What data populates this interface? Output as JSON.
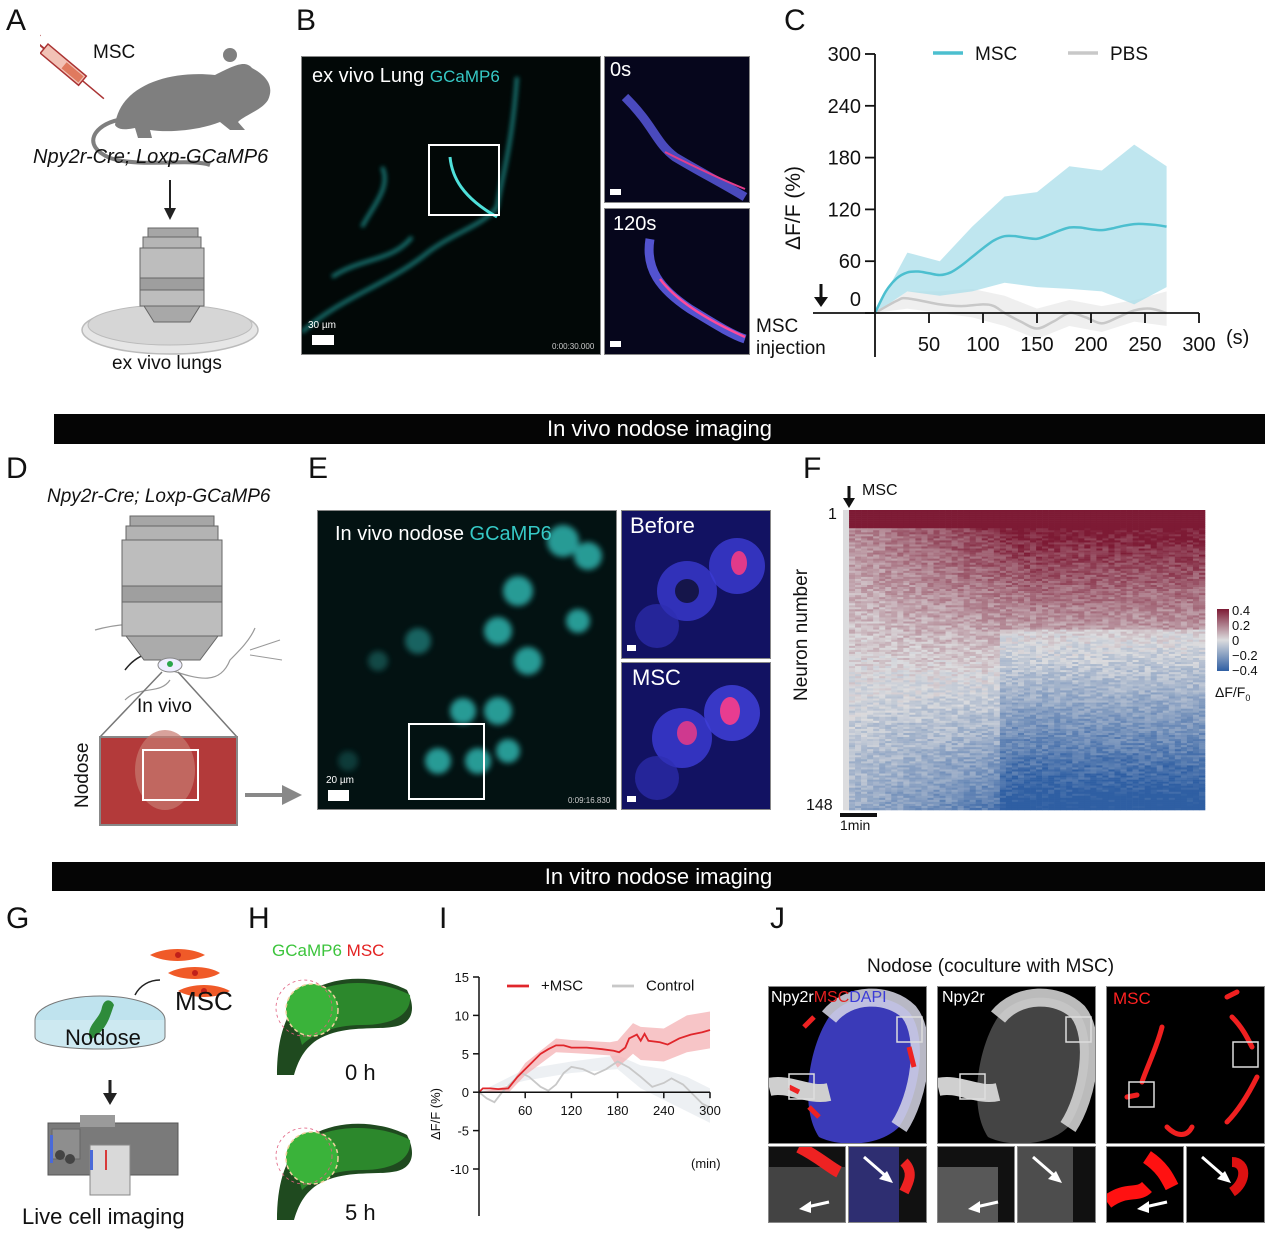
{
  "panels": {
    "A": {
      "letter": "A",
      "injection_label": "MSC",
      "genotype": "Npy2r-Cre; Loxp-GCaMP6",
      "caption": "ex vivo lungs"
    },
    "B": {
      "letter": "B",
      "main_label": "ex vivo Lung",
      "main_label_channel": "GCaMP6",
      "scale": "30 µm",
      "timestamp": "0:00:30.000",
      "inset_top_label": "0s",
      "inset_bottom_label": "120s"
    },
    "C": {
      "letter": "C"
    },
    "D": {
      "letter": "D",
      "genotype": "Npy2r-Cre; Loxp-GCaMP6",
      "in_vivo_label": "In vivo",
      "nodose_label": "Nodose"
    },
    "E": {
      "letter": "E",
      "main_label": "In vivo nodose",
      "main_label_channel": "GCaMP6",
      "scale": "20 µm",
      "timestamp": "0:09:16.830",
      "inset_top_label": "Before",
      "inset_bottom_label": "MSC"
    },
    "F": {
      "letter": "F",
      "marker": "MSC",
      "y_label": "Neuron number",
      "y_top": "1",
      "y_bottom": "148",
      "scale": "1min",
      "colorbar_ticks": [
        "0.4",
        "0.2",
        "0",
        "−0.2",
        "−0.4"
      ],
      "colorbar_label": "ΔF/F",
      "colorbar_label_sub": "0"
    },
    "G": {
      "letter": "G",
      "cells_label": "MSC",
      "dish_label": "Nodose",
      "caption": "Live cell imaging"
    },
    "H": {
      "letter": "H",
      "channel_green": "GCaMP6",
      "channel_red": "MSC",
      "time_top": "0 h",
      "time_bottom": "5 h"
    },
    "I": {
      "letter": "I"
    },
    "J": {
      "letter": "J",
      "title": "Nodose (coculture with MSC)",
      "merge_label_white": "Npy2r",
      "merge_label_red": "MSC",
      "merge_label_blue": "DAPI",
      "single_label": "Npy2r",
      "msc_label": "MSC"
    }
  },
  "banners": {
    "in_vivo": "In vivo nodose imaging",
    "in_vitro": "In vitro nodose imaging"
  },
  "colors": {
    "msc_cyan": "#4cbfcf",
    "msc_cyan_band": "#a9dde9",
    "pbs_gray": "#c8c8c8",
    "msc_red": "#e0262b",
    "msc_red_band": "#f4b2b4",
    "heat_pos": "#7d1a34",
    "heat_neg": "#2f5fa3"
  },
  "chart_data": [
    {
      "id": "C",
      "type": "line",
      "title": "",
      "xlabel": "(s)",
      "ylabel": "ΔF/F (%)",
      "xlim": [
        0,
        300
      ],
      "ylim": [
        0,
        300
      ],
      "xticks": [
        50,
        100,
        150,
        200,
        250,
        300
      ],
      "yticks": [
        0,
        60,
        120,
        180,
        240,
        300
      ],
      "legend": "top",
      "annotation": "MSC injection",
      "series": [
        {
          "name": "MSC",
          "x": [
            0,
            10,
            20,
            30,
            40,
            50,
            60,
            70,
            80,
            90,
            100,
            110,
            120,
            130,
            140,
            150,
            160,
            170,
            180,
            190,
            200,
            210,
            220,
            230,
            240,
            250,
            260,
            270
          ],
          "y": [
            0,
            25,
            40,
            47,
            48,
            46,
            44,
            47,
            55,
            65,
            75,
            84,
            89,
            89,
            87,
            86,
            90,
            95,
            99,
            99,
            97,
            96,
            98,
            101,
            103,
            103,
            102,
            100
          ],
          "band_x": [
            0,
            30,
            60,
            90,
            120,
            150,
            180,
            210,
            240,
            270
          ],
          "band_upper": [
            0,
            70,
            60,
            100,
            135,
            140,
            170,
            165,
            195,
            170
          ],
          "band_lower": [
            0,
            25,
            20,
            25,
            35,
            30,
            28,
            25,
            10,
            30
          ]
        },
        {
          "name": "PBS",
          "x": [
            0,
            20,
            30,
            60,
            80,
            100,
            110,
            120,
            135,
            150,
            165,
            180,
            195,
            210,
            225,
            240,
            255,
            270
          ],
          "y": [
            0,
            14,
            17,
            10,
            8,
            10,
            8,
            0,
            -10,
            -18,
            -10,
            0,
            -5,
            -12,
            -5,
            3,
            5,
            0
          ],
          "band_x": [
            0,
            30,
            60,
            90,
            120,
            150,
            180,
            210,
            240,
            270
          ],
          "band_upper": [
            0,
            25,
            25,
            28,
            20,
            5,
            15,
            8,
            15,
            25
          ],
          "band_lower": [
            0,
            5,
            0,
            -5,
            -15,
            -30,
            -15,
            -22,
            -10,
            -15
          ]
        }
      ]
    },
    {
      "id": "I",
      "type": "line",
      "title": "",
      "xlabel": "(min)",
      "ylabel": "ΔF/F (%)",
      "xlim": [
        0,
        300
      ],
      "ylim": [
        -10,
        15
      ],
      "xticks": [
        60,
        120,
        180,
        240,
        300
      ],
      "yticks": [
        -10,
        -5,
        0,
        5,
        10,
        15
      ],
      "legend": "top",
      "series": [
        {
          "name": "+MSC",
          "x": [
            0,
            5,
            15,
            25,
            38,
            50,
            60,
            70,
            80,
            90,
            100,
            110,
            120,
            140,
            160,
            175,
            182,
            190,
            195,
            205,
            210,
            215,
            220,
            235,
            245,
            260,
            275,
            290,
            300
          ],
          "y": [
            0,
            0.5,
            0.5,
            0.4,
            0.5,
            2,
            3,
            4,
            5,
            5.6,
            6.1,
            6.1,
            5.8,
            5.8,
            5.6,
            5.4,
            5.2,
            5.8,
            7,
            7.5,
            6.7,
            7.6,
            6.7,
            6.5,
            6.2,
            7,
            7.5,
            7.8,
            8.1
          ],
          "band_x": [
            0,
            40,
            60,
            100,
            120,
            170,
            180,
            200,
            210,
            240,
            270,
            300
          ],
          "band_upper": [
            0,
            0.9,
            3.8,
            7,
            6.8,
            6.5,
            6.7,
            9,
            8.5,
            8.3,
            10,
            10.5
          ],
          "band_lower": [
            0,
            0.1,
            2.2,
            5.2,
            5.1,
            4.8,
            3.2,
            5,
            4.2,
            4,
            5.2,
            5.7
          ]
        },
        {
          "name": "Control",
          "x": [
            0,
            10,
            20,
            30,
            45,
            55,
            65,
            80,
            90,
            100,
            110,
            120,
            135,
            150,
            165,
            180,
            195,
            210,
            225,
            240,
            250,
            265,
            280,
            290,
            300
          ],
          "y": [
            0,
            -0.8,
            -1.3,
            0,
            1.5,
            2.5,
            2,
            0.7,
            0.2,
            1,
            2.5,
            3.3,
            3,
            2.3,
            3,
            4,
            3.2,
            2,
            0.7,
            1.2,
            1.8,
            1,
            -0.5,
            -1.5,
            -2
          ],
          "band_x": [
            0,
            60,
            120,
            180,
            210,
            240,
            270,
            300
          ],
          "band_upper": [
            0,
            3,
            4,
            4.8,
            3.5,
            3,
            2,
            0.5
          ],
          "band_lower": [
            0,
            1.5,
            2.5,
            3,
            0.5,
            -1,
            -2.5,
            -4
          ]
        }
      ]
    },
    {
      "id": "F",
      "type": "heatmap",
      "title": "",
      "ylabel": "Neuron number",
      "rows": 148,
      "row_range": [
        1,
        148
      ],
      "color_range": [
        -0.4,
        0.4
      ],
      "colorbar_label": "ΔF/F0",
      "description": "Rows sorted by response; top rows strongly positive (~0.4) after MSC, bottom rows negative (~-0.3)"
    }
  ]
}
